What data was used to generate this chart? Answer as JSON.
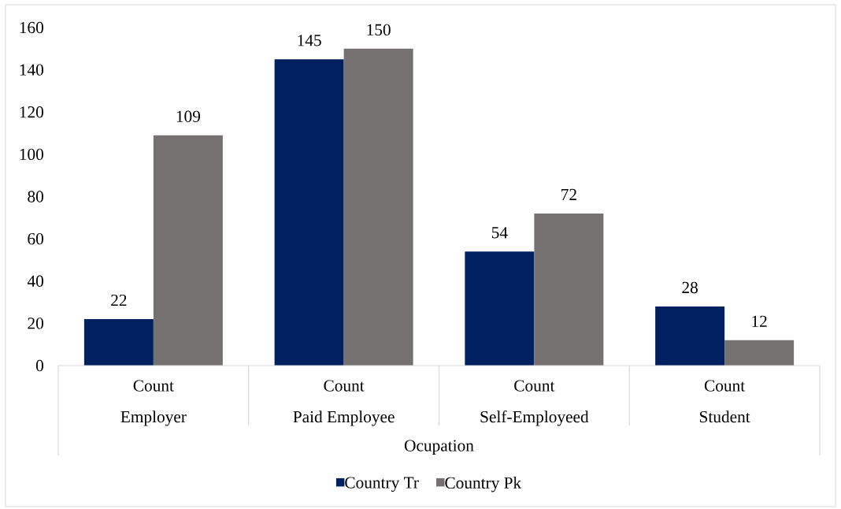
{
  "chart_data": {
    "type": "bar",
    "categories": [
      "Employer",
      "Paid Employee",
      "Self-Employeed",
      "Student"
    ],
    "xlabel": "Ocupation",
    "annotations": [
      "Count",
      "Count",
      "Count",
      "Count"
    ],
    "series": [
      {
        "name": "Country Tr",
        "color": "#002060",
        "values": [
          22,
          145,
          54,
          28
        ]
      },
      {
        "name": "Country Pk",
        "color": "#767171",
        "values": [
          109,
          150,
          72,
          12
        ]
      }
    ],
    "ylim": [
      0,
      160
    ],
    "yticks": [
      0,
      20,
      40,
      60,
      80,
      100,
      120,
      140,
      160
    ],
    "legend": "bottom",
    "data_labels": true
  }
}
